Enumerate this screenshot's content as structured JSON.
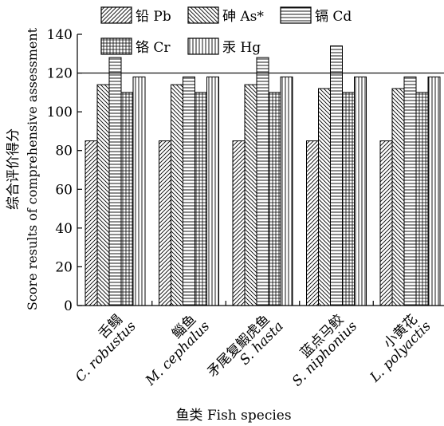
{
  "chart_data": {
    "type": "bar",
    "xlabel": "鱼类 Fish species",
    "ylabel_cn": "综合评价得分",
    "ylabel_en": "Score results of comprehensive assessment",
    "ylim": [
      0,
      140
    ],
    "yticks": [
      "0",
      "20",
      "40",
      "60",
      "80",
      "100",
      "120",
      "140"
    ],
    "reference_line": 120,
    "grid": false,
    "legend_position": "top",
    "categories": [
      {
        "cn": "舌鳎",
        "en": "C. robustus"
      },
      {
        "cn": "鲻鱼",
        "en": "M. cephalus"
      },
      {
        "cn": "矛尾复鰕虎鱼",
        "en": "S. hasta"
      },
      {
        "cn": "蓝点马鲛",
        "en": "S. niphonius"
      },
      {
        "cn": "小黄花",
        "en": "L. polyactis"
      }
    ],
    "series": [
      {
        "name": "铅 Pb",
        "pattern": "diag-right",
        "values": [
          85,
          85,
          85,
          85,
          85
        ]
      },
      {
        "name": "砷 As*",
        "pattern": "diag-left",
        "values": [
          114,
          114,
          114,
          112,
          112
        ]
      },
      {
        "name": "镉 Cd",
        "pattern": "horizontal",
        "values": [
          128,
          118,
          128,
          134,
          118
        ]
      },
      {
        "name": "铬 Cr",
        "pattern": "grid",
        "values": [
          110,
          110,
          110,
          110,
          110
        ]
      },
      {
        "name": "汞 Hg",
        "pattern": "vertical",
        "values": [
          118,
          118,
          118,
          118,
          118
        ]
      }
    ]
  }
}
